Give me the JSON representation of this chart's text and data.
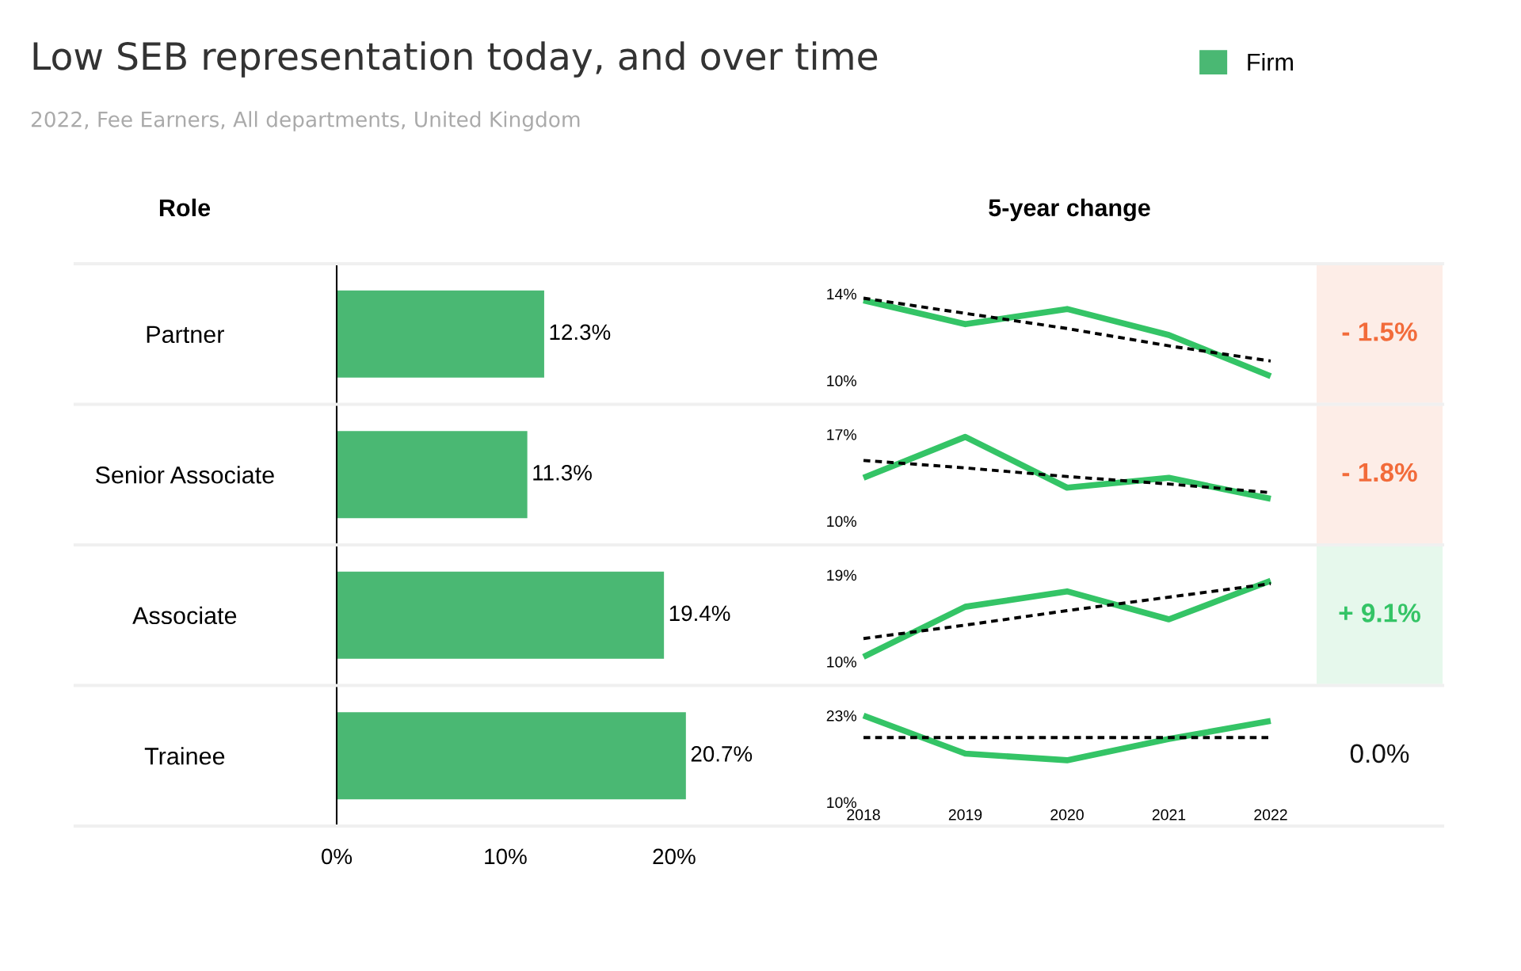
{
  "chart_data": [
    {
      "type": "bar",
      "orientation": "horizontal",
      "title": "Low SEB representation today, and over time",
      "subtitle": "2022, Fee Earners, All departments, United Kingdom",
      "ylabel": "Role",
      "categories": [
        "Partner",
        "Senior Associate",
        "Associate",
        "Trainee"
      ],
      "series": [
        {
          "name": "Firm",
          "color": "#4ab873",
          "values": [
            12.3,
            11.3,
            19.4,
            20.7
          ],
          "value_labels": [
            "12.3%",
            "11.3%",
            "19.4%",
            "20.7%"
          ]
        }
      ],
      "xlim": [
        0,
        27
      ],
      "xticks": [
        {
          "value": 0,
          "label": "0%"
        },
        {
          "value": 10,
          "label": "10%"
        },
        {
          "value": 20,
          "label": "20%"
        }
      ],
      "grid": false,
      "legend": "top right"
    },
    {
      "type": "line",
      "title": "5-year change",
      "x": [
        2018,
        2019,
        2020,
        2021,
        2022
      ],
      "xlim": [
        2018,
        2022
      ],
      "xticks": [
        2018,
        2019,
        2020,
        2021,
        2022
      ],
      "ylim": [
        10,
        14
      ],
      "yticks": [
        {
          "value": 10,
          "label": "10%"
        },
        {
          "value": 14,
          "label": "14%"
        }
      ],
      "tick_labels": "y",
      "grid": false,
      "legend": false,
      "series": [
        {
          "color": "#34c466",
          "values": [
            13.7,
            12.6,
            13.3,
            12.1,
            10.2
          ]
        },
        {
          "color": "#000000",
          "line_style": "dashed",
          "values": [
            13.8,
            13.1,
            12.4,
            11.6,
            10.9
          ]
        }
      ]
    },
    {
      "type": "line",
      "x": [
        2018,
        2019,
        2020,
        2021,
        2022
      ],
      "xlim": [
        2018,
        2022
      ],
      "xticks": [
        2018,
        2019,
        2020,
        2021,
        2022
      ],
      "ylim": [
        10,
        17
      ],
      "yticks": [
        {
          "value": 10,
          "label": "10%"
        },
        {
          "value": 17,
          "label": "17%"
        }
      ],
      "tick_labels": "y",
      "grid": false,
      "legend": false,
      "series": [
        {
          "color": "#34c466",
          "values": [
            13.5,
            16.8,
            12.7,
            13.5,
            11.8
          ]
        },
        {
          "color": "#000000",
          "line_style": "dashed",
          "values": [
            14.9,
            14.3,
            13.6,
            13.0,
            12.3
          ]
        }
      ]
    },
    {
      "type": "line",
      "x": [
        2018,
        2019,
        2020,
        2021,
        2022
      ],
      "xlim": [
        2018,
        2022
      ],
      "xticks": [
        2018,
        2019,
        2020,
        2021,
        2022
      ],
      "ylim": [
        10,
        19
      ],
      "yticks": [
        {
          "value": 10,
          "label": "10%"
        },
        {
          "value": 19,
          "label": "19%"
        }
      ],
      "tick_labels": "y",
      "grid": false,
      "legend": false,
      "series": [
        {
          "color": "#34c466",
          "values": [
            10.5,
            15.7,
            17.3,
            14.4,
            18.4
          ]
        },
        {
          "color": "#000000",
          "line_style": "dashed",
          "values": [
            12.4,
            13.8,
            15.3,
            16.7,
            18.1
          ]
        }
      ]
    },
    {
      "type": "line",
      "x": [
        2018,
        2019,
        2020,
        2021,
        2022
      ],
      "xlim": [
        2018,
        2022
      ],
      "xticks": [
        2018,
        2019,
        2020,
        2021,
        2022
      ],
      "ylim": [
        10,
        23
      ],
      "yticks": [
        {
          "value": 10,
          "label": "10%"
        },
        {
          "value": 23,
          "label": "23%"
        }
      ],
      "grid": false,
      "legend": false,
      "series": [
        {
          "color": "#34c466",
          "values": [
            23,
            17.3,
            16.3,
            19.5,
            22.2
          ]
        },
        {
          "color": "#000000",
          "line_style": "dashed",
          "values": [
            19.7,
            19.7,
            19.7,
            19.7,
            19.7
          ]
        }
      ]
    },
    {
      "type": "other",
      "annotations": [
        "- 1.5%",
        "- 1.8%",
        "+ 9.1%",
        "0.0%"
      ],
      "colors": [
        "#f26b3a",
        "#f26b3a",
        "#34c466",
        "#111111"
      ]
    }
  ]
}
